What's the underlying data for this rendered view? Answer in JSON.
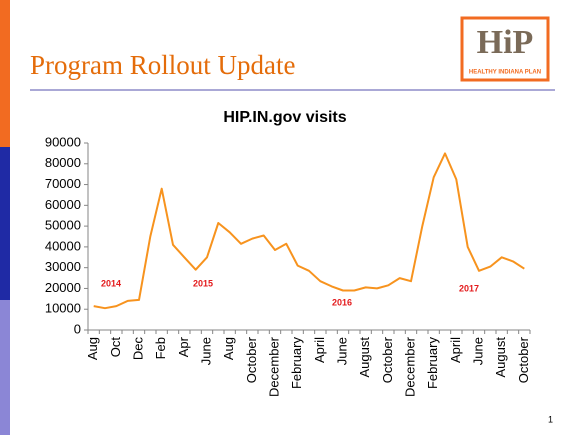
{
  "slide": {
    "title": "Program Rollout Update",
    "page_number": "1",
    "logo": {
      "mark": "HiP",
      "tagline": "HEALTHY INDIANA PLAN"
    }
  },
  "chart_data": {
    "type": "line",
    "title": "HIP.IN.gov visits",
    "categories": [
      "Aug",
      null,
      "Oct",
      null,
      "Dec",
      null,
      "Feb",
      null,
      "Apr",
      null,
      "June",
      null,
      "Aug",
      null,
      "October",
      null,
      "December",
      null,
      "February",
      null,
      "April",
      null,
      "June",
      null,
      "August",
      null,
      "October",
      null,
      "December",
      null,
      "February",
      null,
      "April",
      null,
      "June",
      null,
      "August",
      null,
      "October"
    ],
    "values": [
      11500,
      10500,
      11500,
      14000,
      14500,
      45000,
      68000,
      41000,
      35000,
      29000,
      35000,
      51500,
      47000,
      41500,
      44000,
      45500,
      38500,
      41500,
      31000,
      28500,
      23500,
      21000,
      19000,
      19000,
      20500,
      20000,
      21500,
      25000,
      23500,
      50000,
      73500,
      85000,
      72500,
      40000,
      28500,
      30500,
      35000,
      33000,
      29500
    ],
    "color": "#f7931e",
    "ylim": [
      0,
      90000
    ],
    "yticks": [
      0,
      10000,
      20000,
      30000,
      40000,
      50000,
      60000,
      70000,
      80000,
      90000
    ],
    "grid": false,
    "annotations": [
      "2014",
      "2015",
      "2016",
      "2017"
    ]
  }
}
